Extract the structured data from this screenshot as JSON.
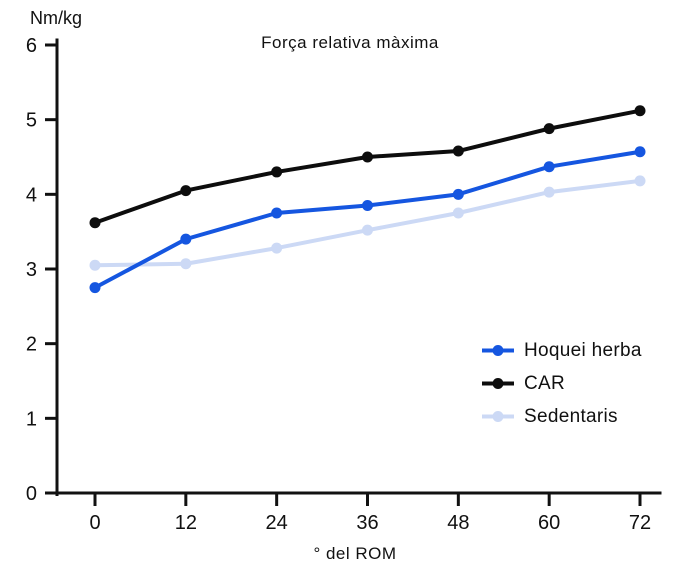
{
  "title": "Força relativa màxima",
  "y_axis_unit": "Nm/kg",
  "x_axis_label": "° del ROM",
  "chart_data": {
    "type": "line",
    "title": "Força relativa màxima",
    "xlabel": "° del ROM",
    "ylabel": "Nm/kg",
    "categories": [
      0,
      12,
      24,
      36,
      48,
      60,
      72
    ],
    "series": [
      {
        "name": "Hoquei herba",
        "color": "#1556e0",
        "values": [
          2.75,
          3.4,
          3.75,
          3.85,
          4.0,
          4.37,
          4.57
        ]
      },
      {
        "name": "CAR",
        "color": "#0d0d0d",
        "values": [
          3.62,
          4.05,
          4.3,
          4.5,
          4.58,
          4.88,
          5.12
        ]
      },
      {
        "name": "Sedentaris",
        "color": "#ccd9f5",
        "values": [
          3.05,
          3.07,
          3.28,
          3.52,
          3.75,
          4.03,
          4.18
        ]
      }
    ],
    "ylim": [
      0,
      6
    ],
    "yticks": [
      0,
      1,
      2,
      3,
      4,
      5,
      6
    ],
    "grid": false,
    "legend_position": "lower right",
    "axis_color": "#111111"
  }
}
